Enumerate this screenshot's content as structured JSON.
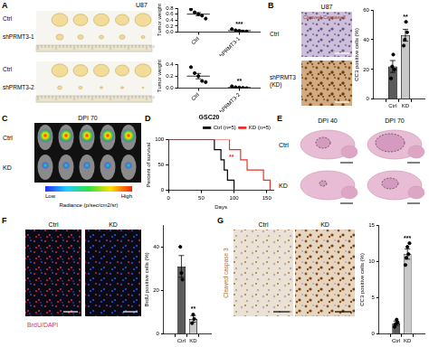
{
  "figure": {
    "A": {
      "letter": "A",
      "title": "U87",
      "rows": [
        "Ctrl",
        "shPRMT3-1",
        "Ctrl",
        "shPRMT3-2"
      ]
    },
    "B": {
      "letter": "B",
      "title": "U87",
      "stain": "Cleaved-Caspase3",
      "rows": [
        [
          "Ctrl"
        ],
        [
          "shPRMT3",
          "(KD)"
        ]
      ]
    },
    "C": {
      "letter": "C",
      "title": "DPI 70",
      "rows": [
        "Ctrl",
        "KD"
      ],
      "colorbar_low": "Low",
      "colorbar_high": "High",
      "colorbar_label": "Radiance (p/sec/cm2/sr)"
    },
    "D": {
      "letter": "D"
    },
    "E": {
      "letter": "E",
      "columns": [
        "DPI 40",
        "DPI 70"
      ],
      "rows": [
        "Ctrl",
        "KD"
      ]
    },
    "F": {
      "letter": "F",
      "columns": [
        "Ctrl",
        "KD"
      ],
      "stain": "BrdU/DAPI"
    },
    "G": {
      "letter": "G",
      "columns": [
        "Ctrl",
        "KD"
      ],
      "stain": "Cleaved caspase 3"
    }
  },
  "chart_data": [
    {
      "type": "strip",
      "categories": [
        "Ctrl",
        "shPRMT3-1"
      ],
      "points": [
        [
          0.76,
          0.66,
          0.6,
          0.55,
          0.45
        ],
        [
          0.1,
          0.06,
          0.04,
          0.02,
          0.02
        ]
      ],
      "values": [
        0.6,
        0.05
      ],
      "errors": [
        0.05,
        0.015
      ],
      "color": "#000000",
      "ylabel": "Tumor weight",
      "ylim": [
        0,
        0.8
      ],
      "yticks": [
        {
          "value": 0,
          "label": "0.0"
        },
        0.2,
        0.4,
        0.6,
        0.8
      ],
      "grid": false,
      "annotation": "***"
    },
    {
      "type": "strip",
      "categories": [
        "Ctrl",
        "shPRMT3-2"
      ],
      "points": [
        [
          0.35,
          0.25,
          0.2,
          0.12,
          0.1
        ],
        [
          0.03,
          0.015,
          0.01,
          0.005,
          0.0
        ]
      ],
      "values": [
        0.2,
        0.01
      ],
      "errors": [
        0.045,
        0.005
      ],
      "color": "#000000",
      "ylabel": "Tumor weight",
      "ylim": [
        0,
        0.4
      ],
      "yticks": [
        {
          "value": 0,
          "label": "0.0"
        },
        0.2,
        0.4
      ],
      "grid": false,
      "annotation": "**"
    },
    {
      "type": "bar",
      "categories": [
        "Ctrl",
        "KD"
      ],
      "points": [
        [
          14,
          22,
          30,
          20
        ],
        [
          36,
          40,
          52,
          45
        ]
      ],
      "values": [
        22,
        43
      ],
      "errors": [
        4,
        4
      ],
      "colors": [
        "#5b5b5b",
        "#c8c8c8"
      ],
      "ylabel": "CC3 positive cells (%)",
      "ylim": [
        0,
        60
      ],
      "yticks": [
        0,
        20,
        40,
        60
      ],
      "grid": false,
      "annotation": "**"
    },
    {
      "type": "survival",
      "title": "GSC20",
      "series": [
        {
          "name": "Ctrl (n=5)",
          "color": "#000000",
          "x": [
            0,
            70,
            80,
            85,
            90,
            100
          ],
          "values": [
            100,
            80,
            60,
            40,
            20,
            0
          ]
        },
        {
          "name": "KD (n=5)",
          "color": "#e8322b",
          "x": [
            0,
            93,
            110,
            120,
            145,
            155
          ],
          "values": [
            100,
            80,
            60,
            40,
            20,
            0
          ]
        }
      ],
      "xlabel": "Days",
      "ylabel": "Percent of survival",
      "xlim": [
        0,
        160
      ],
      "xticks": [
        0,
        50,
        100,
        150
      ],
      "ylim": [
        0,
        100
      ],
      "yticks": [
        0,
        50,
        100
      ],
      "grid": false,
      "legend": "upper right",
      "annotation": "**"
    },
    {
      "type": "bar",
      "categories": [
        "Ctrl",
        "KD"
      ],
      "points": [
        [
          40,
          28,
          25
        ],
        [
          5,
          9,
          7
        ]
      ],
      "values": [
        31,
        7
      ],
      "errors": [
        5,
        1.5
      ],
      "colors": [
        "#5b5b5b",
        "#c8c8c8"
      ],
      "ylabel": "BrdU positive cells (%)",
      "ylim": [
        0,
        50
      ],
      "yticks": [
        0,
        20,
        40
      ],
      "grid": false,
      "annotation": "**"
    },
    {
      "type": "bar",
      "categories": [
        "Ctrl",
        "KD"
      ],
      "points": [
        [
          1,
          1.4,
          2,
          1.6
        ],
        [
          9.5,
          10.5,
          12,
          11,
          12.5
        ]
      ],
      "values": [
        1.5,
        11
      ],
      "errors": [
        0.3,
        0.7
      ],
      "colors": [
        "#5b5b5b",
        "#c8c8c8"
      ],
      "ylabel": "CC3 positive cells (%)",
      "ylim": [
        0,
        15
      ],
      "yticks": [
        0,
        5,
        10,
        15
      ],
      "grid": false,
      "annotation": "***"
    }
  ]
}
